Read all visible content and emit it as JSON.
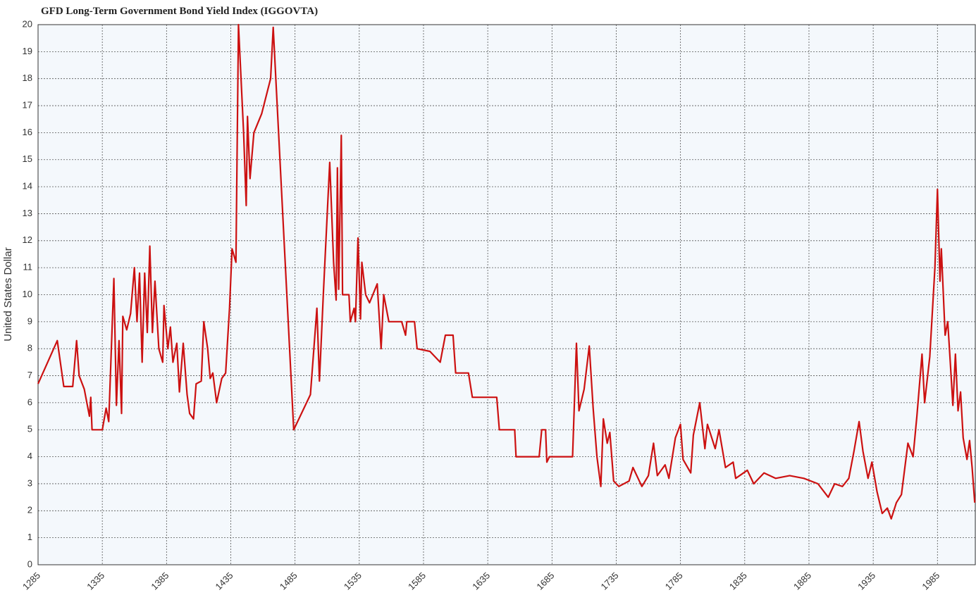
{
  "chart_data": {
    "type": "line",
    "title": "GFD Long-Term Government Bond Yield Index (IGGOVTA)",
    "y_label": "United States Dollar",
    "x": [
      1285,
      1300,
      1305,
      1312,
      1315,
      1317,
      1321,
      1325,
      1326,
      1327,
      1335,
      1338,
      1340,
      1344,
      1346,
      1348,
      1350,
      1351,
      1354,
      1357,
      1360,
      1362,
      1364,
      1366,
      1368,
      1370,
      1372,
      1374,
      1376,
      1379,
      1382,
      1383,
      1386,
      1388,
      1390,
      1393,
      1395,
      1398,
      1401,
      1403,
      1406,
      1408,
      1412,
      1414,
      1417,
      1419,
      1421,
      1424,
      1428,
      1431,
      1434,
      1436,
      1439,
      1441,
      1445,
      1447,
      1448,
      1450,
      1453,
      1459,
      1466,
      1468,
      1484,
      1497,
      1502,
      1504,
      1507,
      1512,
      1515,
      1517,
      1518,
      1519,
      1521,
      1522,
      1527,
      1528,
      1531,
      1532,
      1534,
      1536,
      1537,
      1540,
      1543,
      1549,
      1552,
      1554,
      1558,
      1568,
      1571,
      1572,
      1578,
      1580,
      1590,
      1598,
      1602,
      1608,
      1610,
      1620,
      1623,
      1642,
      1644,
      1656,
      1657,
      1675,
      1677,
      1680,
      1681,
      1683,
      1701,
      1704,
      1706,
      1710,
      1714,
      1717,
      1720,
      1723,
      1725,
      1728,
      1730,
      1733,
      1737,
      1745,
      1748,
      1755,
      1760,
      1764,
      1767,
      1773,
      1776,
      1781,
      1785,
      1787,
      1793,
      1795,
      1800,
      1804,
      1806,
      1812,
      1815,
      1820,
      1826,
      1828,
      1837,
      1842,
      1850,
      1859,
      1870,
      1881,
      1892,
      1900,
      1905,
      1911,
      1916,
      1920,
      1924,
      1927,
      1931,
      1934,
      1938,
      1942,
      1946,
      1949,
      1953,
      1957,
      1962,
      1966,
      1969,
      1973,
      1975,
      1979,
      1983,
      1985,
      1987,
      1988,
      1991,
      1993,
      1995,
      1997,
      1999,
      2001,
      2003,
      2005,
      2008,
      2010,
      2012,
      2014
    ],
    "series": [
      {
        "name": "IGGOVTA",
        "color": "#cc1111",
        "values": [
          6.7,
          8.3,
          6.6,
          6.6,
          8.3,
          7.0,
          6.5,
          5.5,
          6.2,
          5.0,
          5.0,
          5.8,
          5.3,
          10.6,
          5.9,
          8.3,
          5.6,
          9.2,
          8.7,
          9.3,
          11.0,
          9.0,
          10.8,
          7.5,
          10.8,
          8.6,
          11.8,
          8.6,
          10.5,
          8.0,
          7.5,
          9.6,
          8.0,
          8.8,
          7.5,
          8.2,
          6.4,
          8.2,
          6.3,
          5.6,
          5.4,
          6.7,
          6.8,
          9.0,
          8.0,
          6.9,
          7.1,
          6.0,
          6.9,
          7.1,
          9.5,
          11.7,
          11.2,
          20,
          16,
          13.3,
          16.6,
          14.3,
          16,
          16.7,
          18,
          19.9,
          5.0,
          6.3,
          9.5,
          6.8,
          10.0,
          14.9,
          11.2,
          9.8,
          14.7,
          10.2,
          15.9,
          10.0,
          10.0,
          9.0,
          9.5,
          9.0,
          12.1,
          9.1,
          11.2,
          10,
          9.7,
          10.4,
          8.0,
          10,
          9.0,
          9.0,
          8.5,
          9.0,
          9.0,
          8.0,
          7.9,
          7.5,
          8.5,
          8.5,
          7.1,
          7.1,
          6.2,
          6.2,
          5.0,
          5.0,
          4.0,
          4.0,
          5.0,
          5.0,
          3.8,
          4.0,
          4.0,
          8.2,
          5.7,
          6.5,
          8.1,
          5.8,
          4.0,
          2.9,
          5.4,
          4.5,
          4.9,
          3.1,
          2.9,
          3.1,
          3.6,
          2.9,
          3.3,
          4.5,
          3.3,
          3.7,
          3.2,
          4.7,
          5.2,
          3.9,
          3.4,
          4.8,
          6.0,
          4.3,
          5.2,
          4.3,
          5.0,
          3.6,
          3.8,
          3.2,
          3.5,
          3.0,
          3.4,
          3.2,
          3.3,
          3.2,
          3.0,
          2.5,
          3.0,
          2.9,
          3.2,
          4.2,
          5.3,
          4.2,
          3.2,
          3.8,
          2.7,
          1.9,
          2.1,
          1.7,
          2.3,
          2.6,
          4.5,
          4.0,
          5.5,
          7.8,
          6.0,
          7.7,
          11.0,
          13.9,
          10.5,
          11.7,
          8.5,
          9.0,
          7.5,
          5.9,
          7.8,
          5.7,
          6.4,
          4.7,
          3.9,
          4.6,
          3.6,
          2.3
        ]
      }
    ],
    "xlim": [
      1285,
      2015
    ],
    "xticks": [
      1285,
      1335,
      1385,
      1435,
      1485,
      1535,
      1585,
      1635,
      1685,
      1735,
      1785,
      1835,
      1885,
      1935,
      1985
    ],
    "ylim": [
      0,
      20
    ],
    "yticks": [
      0,
      1,
      2,
      3,
      4,
      5,
      6,
      7,
      8,
      9,
      10,
      11,
      12,
      13,
      14,
      15,
      16,
      17,
      18,
      19,
      20
    ],
    "grid": true
  }
}
